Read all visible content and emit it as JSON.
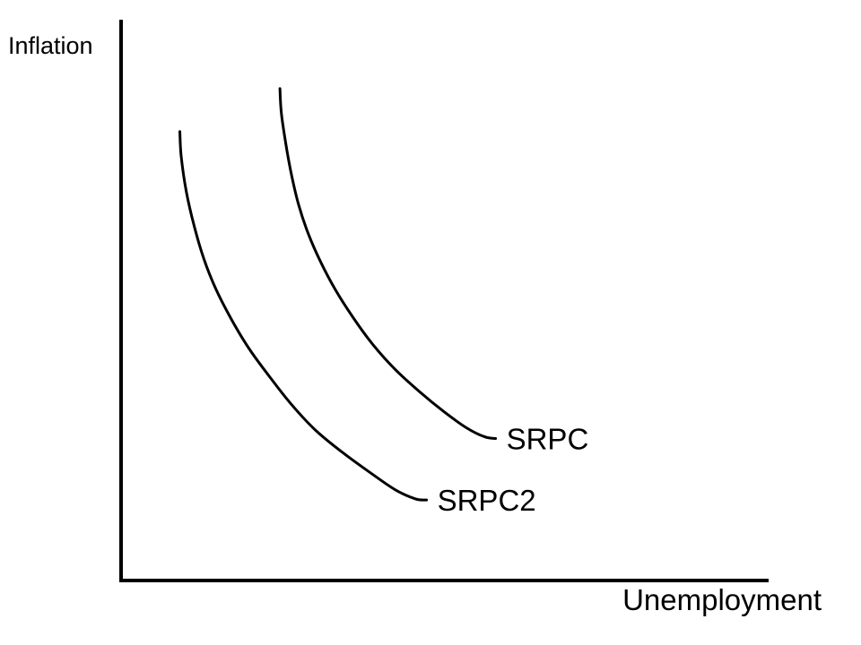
{
  "chart_data": {
    "type": "line",
    "title": "",
    "xlabel": "Unemployment",
    "ylabel": "Inflation",
    "xlim": [
      0,
      100
    ],
    "ylim": [
      0,
      100
    ],
    "grid": false,
    "legend": "none",
    "ticks": false,
    "series": [
      {
        "name": "SRPC",
        "color": "#000000",
        "x": [
          24.6,
          24.8,
          25.5,
          26.4,
          27.5,
          29.0,
          30.9,
          33.2,
          35.9,
          39.0,
          42.4,
          46.1,
          50.0,
          53.5,
          56.3,
          58.0
        ],
        "y": [
          88.0,
          83.8,
          78.2,
          72.5,
          67.2,
          62.0,
          57.0,
          52.0,
          47.1,
          42.2,
          37.8,
          33.9,
          30.2,
          27.3,
          25.7,
          25.4
        ]
      },
      {
        "name": "SRPC2",
        "color": "#000000",
        "x": [
          9.1,
          9.3,
          10.1,
          11.3,
          12.8,
          14.7,
          17.1,
          19.8,
          22.9,
          26.3,
          30.1,
          34.3,
          38.7,
          42.5,
          45.6,
          47.3
        ],
        "y": [
          80.3,
          75.9,
          69.6,
          63.5,
          57.6,
          52.1,
          46.7,
          41.5,
          36.6,
          31.6,
          26.9,
          22.9,
          19.2,
          16.2,
          14.6,
          14.4
        ]
      }
    ]
  }
}
